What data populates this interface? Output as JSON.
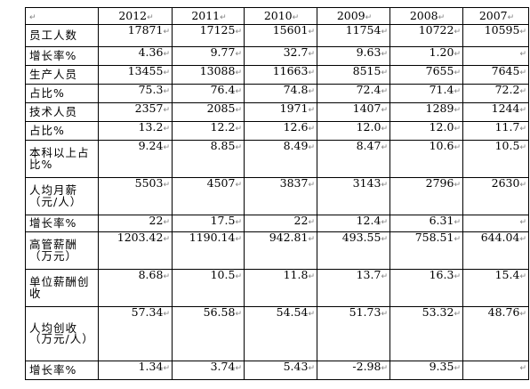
{
  "table": {
    "header": [
      "",
      "2012",
      "2011",
      "2010",
      "2009",
      "2008",
      "2007"
    ],
    "rows": [
      {
        "label": "员工人数",
        "values": [
          "17871",
          "17125",
          "15601",
          "11754",
          "10722",
          "10595"
        ]
      },
      {
        "label": "增长率%",
        "values": [
          "4.36",
          "9.77",
          "32.7",
          "9.63",
          "1.20",
          ""
        ]
      },
      {
        "label": "生产人员",
        "values": [
          "13455",
          "13088",
          "11663",
          "8515",
          "7655",
          "7645"
        ]
      },
      {
        "label": "占比%",
        "values": [
          "75.3",
          "76.4",
          "74.8",
          "72.4",
          "71.4",
          "72.2"
        ]
      },
      {
        "label": "技术人员",
        "values": [
          "2357",
          "2085",
          "1971",
          "1407",
          "1289",
          "1244"
        ]
      },
      {
        "label": "占比%",
        "values": [
          "13.2",
          "12.2",
          "12.6",
          "12.0",
          "12.0",
          "11.7"
        ]
      },
      {
        "label": "本科以上占比%",
        "values": [
          "9.24",
          "8.85",
          "8.49",
          "8.47",
          "10.6",
          "10.5"
        ]
      },
      {
        "label": "人均月薪（元/人）",
        "values": [
          "5503",
          "4507",
          "3837",
          "3143",
          "2796",
          "2630"
        ]
      },
      {
        "label": "增长率%",
        "values": [
          "22",
          "17.5",
          "22",
          "12.4",
          "6.31",
          ""
        ]
      },
      {
        "label": "高管薪酬（万元）",
        "values": [
          "1203.42",
          "1190.14",
          "942.81",
          "493.55",
          "758.51",
          "644.04"
        ]
      },
      {
        "label": "单位薪酬创收",
        "values": [
          "8.68",
          "10.5",
          "11.8",
          "13.7",
          "16.3",
          "15.4"
        ]
      },
      {
        "label": "人均创收（万元/人）",
        "values": [
          "57.34",
          "56.58",
          "54.54",
          "51.73",
          "53.32",
          "48.76"
        ]
      },
      {
        "label": "增长率%",
        "values": [
          "1.34",
          "3.74",
          "5.43",
          "-2.98",
          "9.35",
          ""
        ]
      }
    ]
  },
  "cell_end_mark": "↵",
  "colors": {
    "border": "#000000",
    "mark": "#808080"
  }
}
